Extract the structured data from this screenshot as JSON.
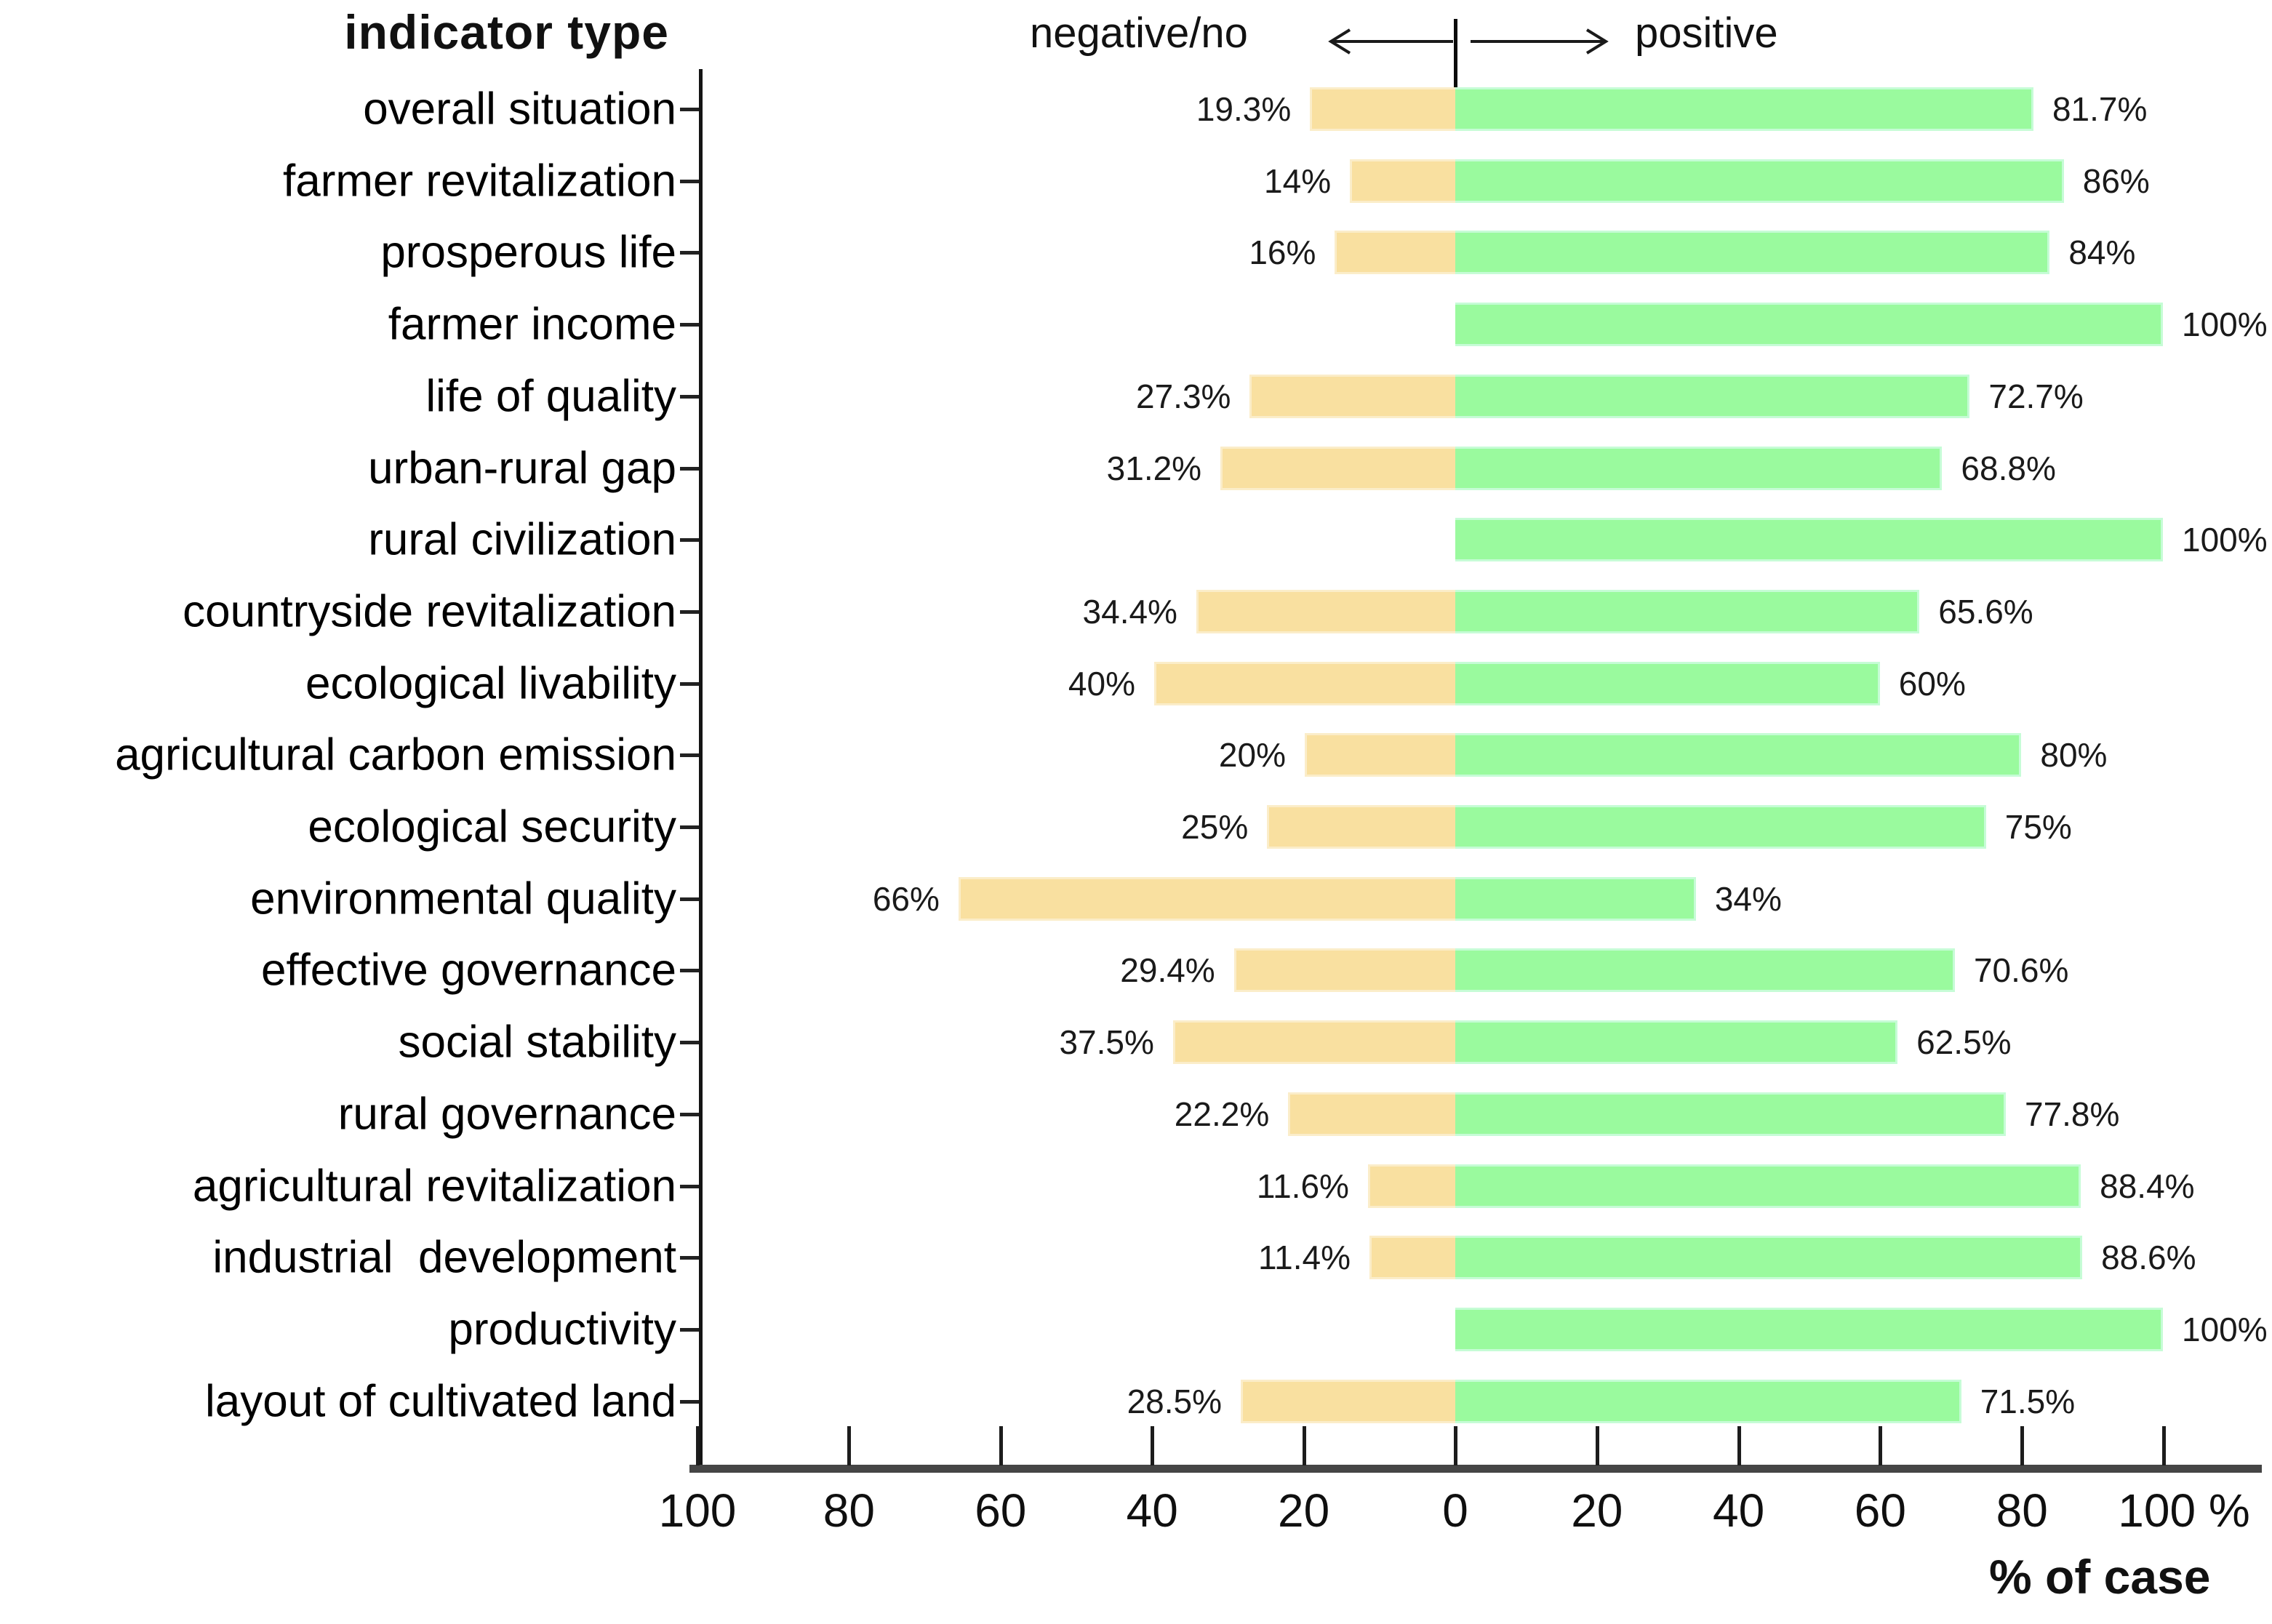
{
  "header": {
    "indicator_type_title": "indicator type",
    "negative_label": "negative/no",
    "positive_label": "positive"
  },
  "axis": {
    "x_title": "% of case",
    "tick_labels": [
      "100",
      "80",
      "60",
      "40",
      "20",
      "0",
      "20",
      "40",
      "60",
      "80",
      "100 %"
    ]
  },
  "colors": {
    "negative_bar": "#F9E0A0",
    "positive_bar": "#9AFA9E",
    "axis_line": "#454545",
    "text": "#111111"
  },
  "chart_data": {
    "type": "bar",
    "orientation": "horizontal-diverging",
    "title": "indicator type",
    "xlabel": "% of case",
    "axis_range_left": [
      100,
      0
    ],
    "axis_range_right": [
      0,
      100
    ],
    "grid": false,
    "legend": {
      "left_direction": "negative/no",
      "right_direction": "positive"
    },
    "categories": [
      "overall situation",
      "farmer revitalization",
      "prosperous life",
      "farmer income",
      "life of quality",
      "urban-rural gap",
      "rural civilization",
      "countryside revitalization",
      "ecological livability",
      "agricultural carbon emission",
      "ecological security",
      "environmental quality",
      "effective governance",
      "social stability",
      "rural governance",
      "agricultural revitalization",
      "industrial  development",
      "productivity",
      "layout of cultivated land"
    ],
    "series": [
      {
        "name": "negative/no",
        "values": [
          19.3,
          14,
          16,
          0,
          27.3,
          31.2,
          0,
          34.4,
          40,
          20,
          25,
          66,
          29.4,
          37.5,
          22.2,
          11.6,
          11.4,
          0,
          28.5
        ],
        "labels": [
          "19.3%",
          "14%",
          "16%",
          "",
          "27.3%",
          "31.2%",
          "",
          "34.4%",
          "40%",
          "20%",
          "25%",
          "66%",
          "29.4%",
          "37.5%",
          "22.2%",
          "11.6%",
          "11.4%",
          "",
          "28.5%"
        ]
      },
      {
        "name": "positive",
        "values": [
          81.7,
          86,
          84,
          100,
          72.7,
          68.8,
          100,
          65.6,
          60,
          80,
          75,
          34,
          70.6,
          62.5,
          77.8,
          88.4,
          88.6,
          100,
          71.5
        ],
        "labels": [
          "81.7%",
          "86%",
          "84%",
          "100%",
          "72.7%",
          "68.8%",
          "100%",
          "65.6%",
          "60%",
          "80%",
          "75%",
          "34%",
          "70.6%",
          "62.5%",
          "77.8%",
          "88.4%",
          "88.6%",
          "100%",
          "71.5%"
        ]
      }
    ]
  }
}
